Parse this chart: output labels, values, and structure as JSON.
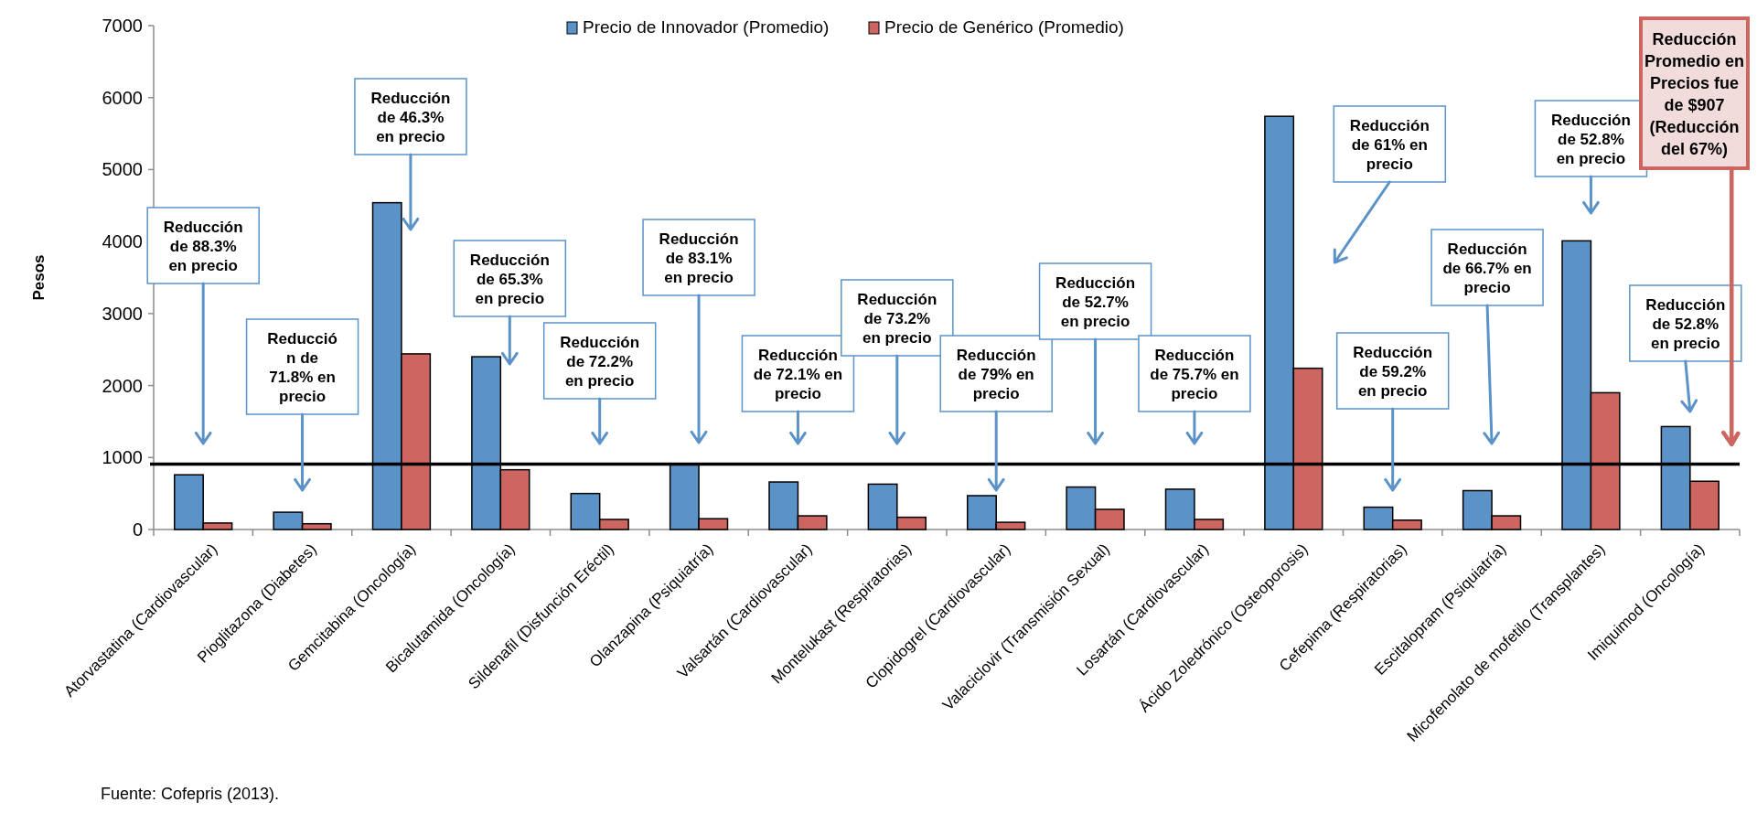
{
  "chart_data": {
    "type": "bar",
    "ylabel": "Pesos",
    "legend": "top",
    "grid": false,
    "categories": [
      "Atorvastatina (Cardiovascular)",
      "Pioglitazona (Diabetes)",
      "Gemcitabina (Oncología)",
      "Bicalutamida (Oncología)",
      "Sildenafil (Disfunción Eréctil)",
      "Olanzapina (Psiquiatría)",
      "Valsartán (Cardiovascular)",
      "Montelukast (Respiratorias)",
      "Clopidogrel (Cardiovascular)",
      "Valaciclovir (Transmisión Sexual)",
      "Losartán (Cardiovascular)",
      "Ácido Zoledrónico (Osteoporosis)",
      "Cefepima (Respiratorias)",
      "Escitalopram (Psiquiatría)",
      "Micofenolato de mofetilo (Transplantes)",
      "Imiquimod (Oncología)"
    ],
    "series": [
      {
        "name": "Precio de Innovador (Promedio)",
        "color": "#5b93c9",
        "values": [
          760,
          240,
          4540,
          2400,
          500,
          900,
          660,
          630,
          470,
          590,
          560,
          5740,
          310,
          540,
          4010,
          1430
        ]
      },
      {
        "name": "Precio de Genérico (Promedio)",
        "color": "#cd6560",
        "values": [
          90,
          80,
          2440,
          830,
          140,
          150,
          190,
          170,
          100,
          280,
          140,
          2240,
          130,
          190,
          1900,
          670
        ]
      }
    ],
    "ylim": [
      0,
      7000
    ],
    "yticks": [
      0,
      1000,
      2000,
      3000,
      4000,
      5000,
      6000,
      7000
    ],
    "ref_lines": [
      {
        "axis": "y",
        "value": 907,
        "color": "#000000"
      }
    ],
    "annotations": [
      "Reducción\nde 88.3%\nen precio",
      "Reducció\nn de\n71.8% en\nprecio",
      "Reducción\nde 46.3%\nen precio",
      "Reducción\nde 65.3%\nen precio",
      "Reducción\nde 72.2%\nen precio",
      "Reducción\nde 83.1%\nen precio",
      "Reducción\nde 72.1% en\nprecio",
      "Reducción\nde 73.2%\nen precio",
      "Reducción\nde 79% en\nprecio",
      "Reducción\nde 52.7%\nen precio",
      "Reducción\nde 75.7% en\nprecio",
      "Reducción\nde 61% en\nprecio",
      "Reducción\nde 59.2%\nen precio",
      "Reducción\nde 66.7% en\nprecio",
      "Reducción\nde 52.8%\nen precio",
      "Reducción\nde 52.8%\nen precio",
      "Reducción\nPromedio en\nPrecios fue\nde $907\n(Reducción\ndel 67%)",
      "Fuente: Cofepris (2013)."
    ]
  }
}
